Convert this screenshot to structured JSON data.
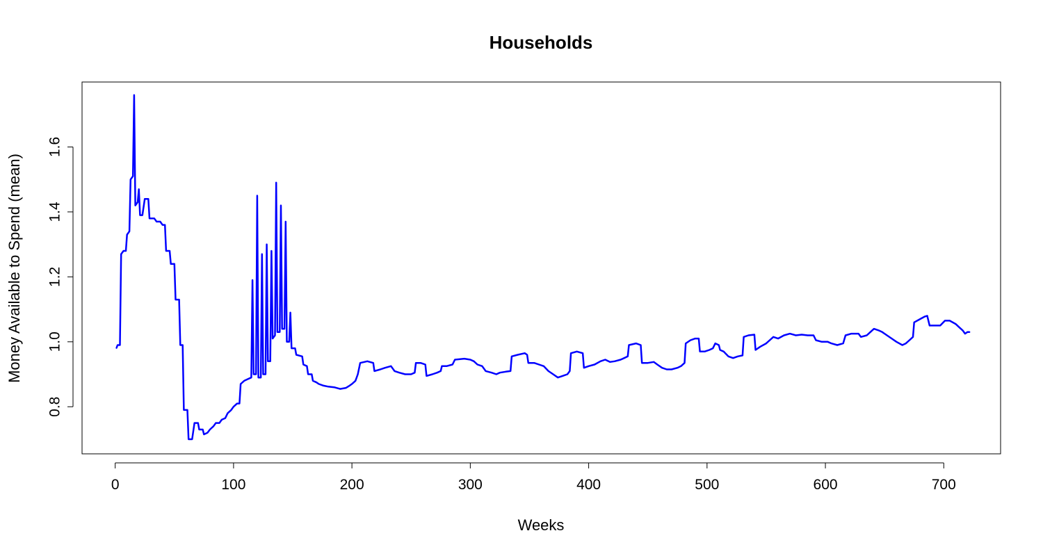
{
  "chart_data": {
    "type": "line",
    "title": "Households",
    "xlabel": "Weeks",
    "ylabel": "Money Available to Spend (mean)",
    "xlim": [
      -28,
      748
    ],
    "ylim": [
      0.655,
      1.8
    ],
    "x_ticks": [
      0,
      100,
      200,
      300,
      400,
      500,
      600,
      700
    ],
    "x_tick_labels": [
      "0",
      "100",
      "200",
      "300",
      "400",
      "500",
      "600",
      "700"
    ],
    "y_ticks": [
      0.8,
      1.0,
      1.2,
      1.4,
      1.6
    ],
    "y_tick_labels": [
      "0.8",
      "1.0",
      "1.2",
      "1.4",
      "1.6"
    ],
    "grid": false,
    "legend": "none",
    "series": [
      {
        "color": "#0000ff",
        "points": [
          [
            1,
            0.98
          ],
          [
            2,
            0.99
          ],
          [
            4,
            0.99
          ],
          [
            5,
            1.27
          ],
          [
            7,
            1.28
          ],
          [
            9,
            1.28
          ],
          [
            10,
            1.33
          ],
          [
            12,
            1.34
          ],
          [
            13,
            1.5
          ],
          [
            15,
            1.51
          ],
          [
            16,
            1.76
          ],
          [
            17,
            1.42
          ],
          [
            19,
            1.43
          ],
          [
            20,
            1.47
          ],
          [
            21,
            1.39
          ],
          [
            23,
            1.39
          ],
          [
            25,
            1.44
          ],
          [
            28,
            1.44
          ],
          [
            29,
            1.38
          ],
          [
            31,
            1.38
          ],
          [
            33,
            1.38
          ],
          [
            35,
            1.37
          ],
          [
            38,
            1.37
          ],
          [
            40,
            1.36
          ],
          [
            42,
            1.36
          ],
          [
            43,
            1.28
          ],
          [
            46,
            1.28
          ],
          [
            47,
            1.24
          ],
          [
            50,
            1.24
          ],
          [
            51,
            1.13
          ],
          [
            54,
            1.13
          ],
          [
            55,
            0.99
          ],
          [
            57,
            0.99
          ],
          [
            58,
            0.79
          ],
          [
            61,
            0.79
          ],
          [
            62,
            0.7
          ],
          [
            65,
            0.7
          ],
          [
            67,
            0.75
          ],
          [
            70,
            0.75
          ],
          [
            71,
            0.73
          ],
          [
            74,
            0.73
          ],
          [
            75,
            0.715
          ],
          [
            78,
            0.72
          ],
          [
            80,
            0.73
          ],
          [
            83,
            0.74
          ],
          [
            85,
            0.75
          ],
          [
            88,
            0.75
          ],
          [
            90,
            0.76
          ],
          [
            93,
            0.765
          ],
          [
            95,
            0.78
          ],
          [
            98,
            0.79
          ],
          [
            100,
            0.8
          ],
          [
            103,
            0.81
          ],
          [
            105,
            0.81
          ],
          [
            106,
            0.87
          ],
          [
            109,
            0.88
          ],
          [
            112,
            0.885
          ],
          [
            115,
            0.89
          ],
          [
            116,
            1.19
          ],
          [
            117,
            0.9
          ],
          [
            119,
            0.9
          ],
          [
            120,
            1.45
          ],
          [
            121,
            0.89
          ],
          [
            123,
            0.89
          ],
          [
            124,
            1.27
          ],
          [
            125,
            0.9
          ],
          [
            127,
            0.9
          ],
          [
            128,
            1.3
          ],
          [
            129,
            0.94
          ],
          [
            131,
            0.94
          ],
          [
            132,
            1.28
          ],
          [
            133,
            1.01
          ],
          [
            135,
            1.02
          ],
          [
            136,
            1.49
          ],
          [
            137,
            1.03
          ],
          [
            139,
            1.03
          ],
          [
            140,
            1.42
          ],
          [
            141,
            1.04
          ],
          [
            143,
            1.04
          ],
          [
            144,
            1.37
          ],
          [
            145,
            1.0
          ],
          [
            147,
            1.0
          ],
          [
            148,
            1.09
          ],
          [
            149,
            0.98
          ],
          [
            152,
            0.98
          ],
          [
            153,
            0.96
          ],
          [
            158,
            0.955
          ],
          [
            159,
            0.93
          ],
          [
            162,
            0.925
          ],
          [
            163,
            0.9
          ],
          [
            166,
            0.9
          ],
          [
            167,
            0.88
          ],
          [
            170,
            0.875
          ],
          [
            172,
            0.87
          ],
          [
            176,
            0.865
          ],
          [
            180,
            0.862
          ],
          [
            185,
            0.86
          ],
          [
            190,
            0.855
          ],
          [
            195,
            0.858
          ],
          [
            198,
            0.865
          ],
          [
            200,
            0.87
          ],
          [
            203,
            0.88
          ],
          [
            205,
            0.9
          ],
          [
            207,
            0.935
          ],
          [
            213,
            0.94
          ],
          [
            218,
            0.935
          ],
          [
            219,
            0.91
          ],
          [
            224,
            0.915
          ],
          [
            228,
            0.92
          ],
          [
            233,
            0.925
          ],
          [
            236,
            0.91
          ],
          [
            240,
            0.905
          ],
          [
            245,
            0.9
          ],
          [
            250,
            0.9
          ],
          [
            253,
            0.905
          ],
          [
            254,
            0.935
          ],
          [
            258,
            0.935
          ],
          [
            262,
            0.93
          ],
          [
            263,
            0.895
          ],
          [
            268,
            0.9
          ],
          [
            272,
            0.905
          ],
          [
            275,
            0.91
          ],
          [
            276,
            0.925
          ],
          [
            280,
            0.925
          ],
          [
            285,
            0.93
          ],
          [
            287,
            0.945
          ],
          [
            295,
            0.948
          ],
          [
            300,
            0.945
          ],
          [
            303,
            0.94
          ],
          [
            306,
            0.93
          ],
          [
            310,
            0.925
          ],
          [
            313,
            0.91
          ],
          [
            318,
            0.905
          ],
          [
            322,
            0.9
          ],
          [
            325,
            0.905
          ],
          [
            330,
            0.908
          ],
          [
            334,
            0.91
          ],
          [
            335,
            0.955
          ],
          [
            340,
            0.96
          ],
          [
            346,
            0.965
          ],
          [
            348,
            0.96
          ],
          [
            349,
            0.935
          ],
          [
            354,
            0.935
          ],
          [
            358,
            0.93
          ],
          [
            362,
            0.925
          ],
          [
            366,
            0.91
          ],
          [
            370,
            0.9
          ],
          [
            374,
            0.89
          ],
          [
            378,
            0.895
          ],
          [
            382,
            0.9
          ],
          [
            384,
            0.91
          ],
          [
            385,
            0.965
          ],
          [
            390,
            0.97
          ],
          [
            395,
            0.965
          ],
          [
            396,
            0.92
          ],
          [
            400,
            0.925
          ],
          [
            405,
            0.93
          ],
          [
            410,
            0.94
          ],
          [
            414,
            0.945
          ],
          [
            418,
            0.938
          ],
          [
            422,
            0.94
          ],
          [
            427,
            0.945
          ],
          [
            430,
            0.95
          ],
          [
            433,
            0.955
          ],
          [
            434,
            0.99
          ],
          [
            440,
            0.995
          ],
          [
            444,
            0.99
          ],
          [
            445,
            0.935
          ],
          [
            450,
            0.935
          ],
          [
            455,
            0.938
          ],
          [
            458,
            0.93
          ],
          [
            462,
            0.92
          ],
          [
            466,
            0.915
          ],
          [
            470,
            0.915
          ],
          [
            475,
            0.92
          ],
          [
            478,
            0.925
          ],
          [
            481,
            0.935
          ],
          [
            482,
            0.995
          ],
          [
            486,
            1.005
          ],
          [
            490,
            1.01
          ],
          [
            493,
            1.01
          ],
          [
            494,
            0.97
          ],
          [
            498,
            0.97
          ],
          [
            502,
            0.975
          ],
          [
            505,
            0.98
          ],
          [
            507,
            0.995
          ],
          [
            510,
            0.99
          ],
          [
            511,
            0.975
          ],
          [
            514,
            0.97
          ],
          [
            518,
            0.955
          ],
          [
            522,
            0.95
          ],
          [
            526,
            0.955
          ],
          [
            530,
            0.958
          ],
          [
            531,
            1.015
          ],
          [
            535,
            1.02
          ],
          [
            540,
            1.022
          ],
          [
            541,
            0.975
          ],
          [
            545,
            0.985
          ],
          [
            550,
            0.995
          ],
          [
            553,
            1.005
          ],
          [
            556,
            1.015
          ],
          [
            560,
            1.01
          ],
          [
            565,
            1.02
          ],
          [
            570,
            1.025
          ],
          [
            575,
            1.02
          ],
          [
            580,
            1.022
          ],
          [
            585,
            1.02
          ],
          [
            590,
            1.02
          ],
          [
            592,
            1.005
          ],
          [
            597,
            1.0
          ],
          [
            602,
            1.0
          ],
          [
            605,
            0.995
          ],
          [
            610,
            0.99
          ],
          [
            615,
            0.995
          ],
          [
            617,
            1.02
          ],
          [
            622,
            1.025
          ],
          [
            628,
            1.025
          ],
          [
            630,
            1.015
          ],
          [
            635,
            1.02
          ],
          [
            638,
            1.03
          ],
          [
            641,
            1.04
          ],
          [
            645,
            1.035
          ],
          [
            648,
            1.03
          ],
          [
            652,
            1.02
          ],
          [
            656,
            1.01
          ],
          [
            660,
            1.0
          ],
          [
            665,
            0.99
          ],
          [
            668,
            0.995
          ],
          [
            671,
            1.005
          ],
          [
            674,
            1.015
          ],
          [
            675,
            1.06
          ],
          [
            680,
            1.07
          ],
          [
            684,
            1.078
          ],
          [
            686,
            1.08
          ],
          [
            688,
            1.05
          ],
          [
            692,
            1.05
          ],
          [
            697,
            1.05
          ],
          [
            701,
            1.065
          ],
          [
            705,
            1.065
          ],
          [
            710,
            1.055
          ],
          [
            713,
            1.045
          ],
          [
            716,
            1.035
          ],
          [
            718,
            1.025
          ],
          [
            720,
            1.03
          ],
          [
            722,
            1.03
          ]
        ]
      }
    ]
  }
}
